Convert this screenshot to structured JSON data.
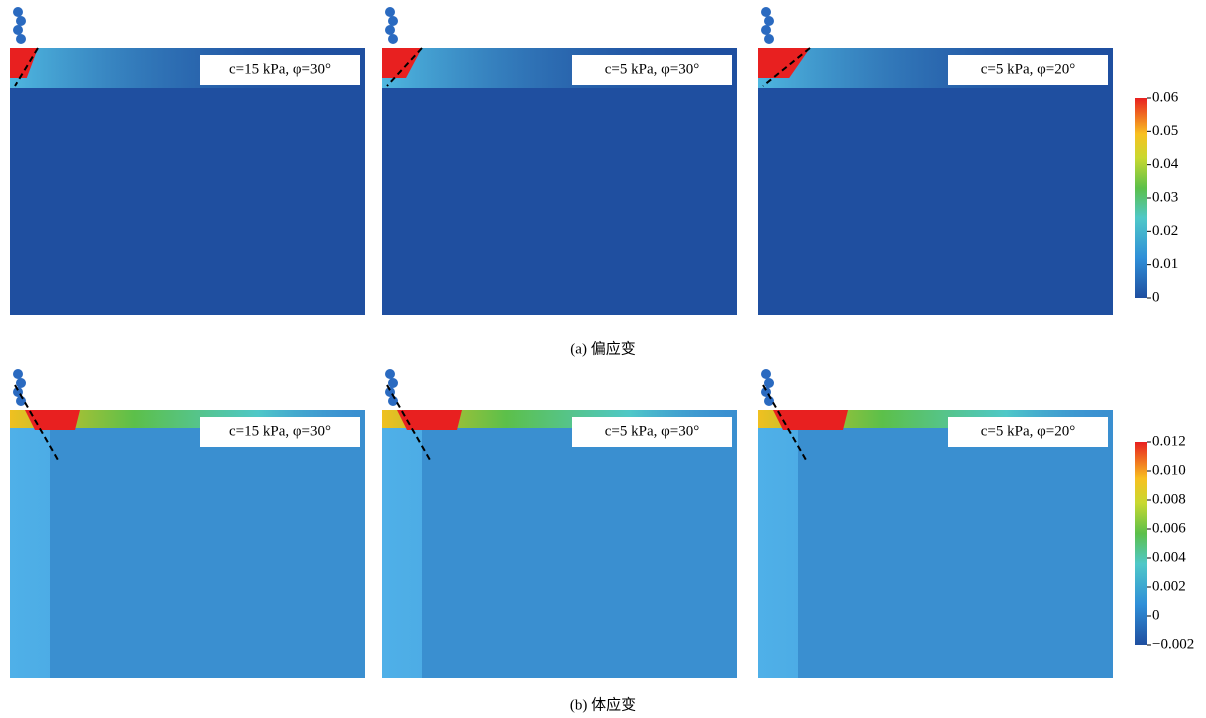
{
  "rows": [
    {
      "caption": "(a) 偏应变",
      "panels": [
        {
          "label": "c=15 kPa, φ=30°"
        },
        {
          "label": "c=5 kPa, φ=30°"
        },
        {
          "label": "c=5 kPa, φ=20°"
        }
      ],
      "colorbar": {
        "ticks": [
          "0.06",
          "0.05",
          "0.04",
          "0.03",
          "0.02",
          "0.01",
          "0"
        ]
      }
    },
    {
      "caption": "(b) 体应变",
      "panels": [
        {
          "label": "c=15 kPa, φ=30°"
        },
        {
          "label": "c=5 kPa, φ=30°"
        },
        {
          "label": "c=5 kPa, φ=20°"
        }
      ],
      "colorbar": {
        "ticks": [
          "0.012",
          "0.010",
          "0.008",
          "0.006",
          "0.004",
          "0.002",
          "0",
          "−0.002"
        ]
      }
    }
  ]
}
